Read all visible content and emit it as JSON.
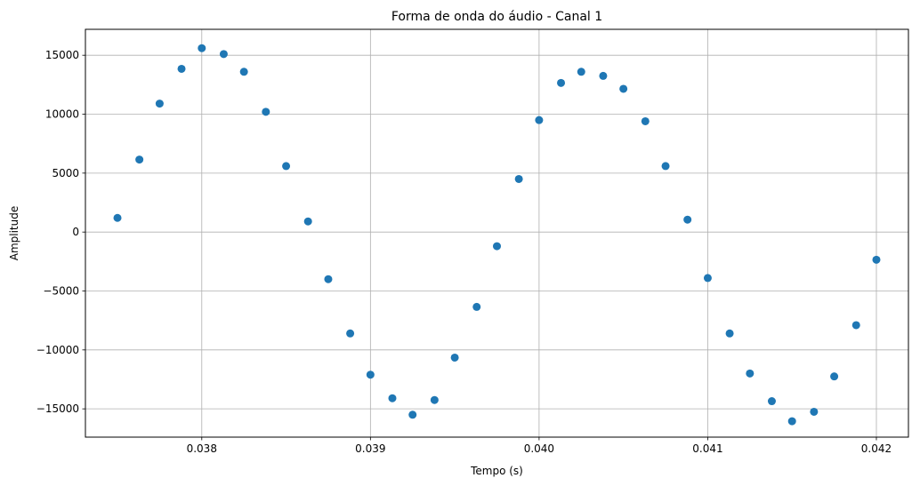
{
  "chart_data": {
    "type": "scatter",
    "title": "Forma de onda do áudio - Canal 1",
    "xlabel": "Tempo (s)",
    "ylabel": "Amplitude",
    "xlim": [
      0.03731,
      0.04219
    ],
    "ylim": [
      -17400,
      17200
    ],
    "grid": true,
    "x_ticks": [
      0.038,
      0.039,
      0.04,
      0.041,
      0.042
    ],
    "x_tick_labels": [
      "0.038",
      "0.039",
      "0.040",
      "0.041",
      "0.042"
    ],
    "y_ticks": [
      15000,
      10000,
      5000,
      0,
      -5000,
      -10000,
      -15000
    ],
    "y_tick_labels": [
      "15000",
      "10000",
      "5000",
      "0",
      "−5000",
      "−10000",
      "−15000"
    ],
    "series": [
      {
        "color": "#1f77b4",
        "points": [
          [
            0.0375,
            1200
          ],
          [
            0.03763,
            6150
          ],
          [
            0.03775,
            10900
          ],
          [
            0.03788,
            13850
          ],
          [
            0.038,
            15600
          ],
          [
            0.03813,
            15100
          ],
          [
            0.03825,
            13600
          ],
          [
            0.03838,
            10200
          ],
          [
            0.0385,
            5600
          ],
          [
            0.03863,
            900
          ],
          [
            0.03875,
            -4000
          ],
          [
            0.03888,
            -8600
          ],
          [
            0.039,
            -12100
          ],
          [
            0.03913,
            -14100
          ],
          [
            0.03925,
            -15500
          ],
          [
            0.03938,
            -14250
          ],
          [
            0.0395,
            -10650
          ],
          [
            0.03963,
            -6350
          ],
          [
            0.03975,
            -1200
          ],
          [
            0.03988,
            4500
          ],
          [
            0.04,
            9500
          ],
          [
            0.04013,
            12650
          ],
          [
            0.04025,
            13600
          ],
          [
            0.04038,
            13250
          ],
          [
            0.0405,
            12150
          ],
          [
            0.04063,
            9400
          ],
          [
            0.04075,
            5600
          ],
          [
            0.04088,
            1050
          ],
          [
            0.041,
            -3900
          ],
          [
            0.04113,
            -8600
          ],
          [
            0.04125,
            -12000
          ],
          [
            0.04138,
            -14350
          ],
          [
            0.0415,
            -16050
          ],
          [
            0.04163,
            -15250
          ],
          [
            0.04175,
            -12250
          ],
          [
            0.04188,
            -7900
          ],
          [
            0.042,
            -2350
          ]
        ]
      }
    ]
  }
}
